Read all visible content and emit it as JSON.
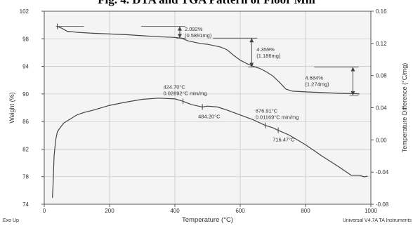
{
  "page_title": "Fig. 4. DTA and TGA Pattern of Floor Mill",
  "chart_data": {
    "type": "line",
    "x_axis": {
      "label": "Temperature (°C)",
      "range": [
        0,
        1000
      ],
      "ticks": [
        0,
        200,
        400,
        600,
        800,
        1000
      ],
      "tick_labels": [
        "0",
        "200",
        "400",
        "600",
        "800",
        "1000"
      ]
    },
    "y_left": {
      "label": "Weight (%)",
      "range": [
        74,
        102
      ],
      "ticks": [
        74,
        78,
        82,
        86,
        90,
        94,
        98,
        102
      ],
      "tick_labels": [
        "74",
        "78",
        "82",
        "86",
        "90",
        "94",
        "98",
        "102"
      ]
    },
    "y_right": {
      "label": "Temperature Difference (°C/mg)",
      "range": [
        -0.08,
        0.16
      ],
      "ticks": [
        -0.08,
        -0.04,
        0.0,
        0.04,
        0.08,
        0.12,
        0.16
      ],
      "tick_labels": [
        "-0.08",
        "-0.04",
        "0.00",
        "0.04",
        "0.08",
        "0.12",
        "0.16"
      ]
    },
    "grid": true,
    "legend": "none",
    "series": [
      {
        "axis": "left",
        "x": [
          40,
          55,
          70,
          100,
          150,
          200,
          250,
          300,
          350,
          400,
          420,
          440,
          460,
          480,
          500,
          520,
          540,
          560,
          580,
          600,
          620,
          640,
          660,
          680,
          700,
          720,
          740,
          760,
          780,
          800,
          850,
          900,
          950,
          965
        ],
        "y": [
          99.8,
          99.5,
          99.1,
          98.95,
          98.8,
          98.7,
          98.6,
          98.45,
          98.3,
          98.2,
          98.1,
          97.7,
          97.5,
          97.3,
          97.2,
          97.0,
          96.8,
          96.4,
          95.6,
          94.9,
          94.4,
          94.0,
          93.7,
          93.2,
          92.6,
          91.7,
          90.7,
          90.4,
          90.35,
          90.3,
          90.2,
          90.1,
          90.05,
          90.0
        ]
      },
      {
        "axis": "right",
        "x": [
          25,
          27,
          30,
          35,
          40,
          50,
          60,
          80,
          100,
          120,
          150,
          200,
          250,
          300,
          350,
          400,
          425,
          450,
          484,
          500,
          530,
          560,
          600,
          640,
          677,
          700,
          716,
          750,
          800,
          850,
          900,
          940,
          965,
          980,
          990
        ],
        "y": [
          -0.072,
          -0.055,
          -0.02,
          0.0,
          0.01,
          0.016,
          0.021,
          0.026,
          0.031,
          0.034,
          0.037,
          0.043,
          0.047,
          0.0505,
          0.052,
          0.051,
          0.048,
          0.044,
          0.041,
          0.042,
          0.041,
          0.037,
          0.031,
          0.025,
          0.018,
          0.015,
          0.012,
          0.006,
          -0.006,
          -0.02,
          -0.033,
          -0.044,
          -0.044,
          -0.046,
          -0.045
        ]
      }
    ],
    "weight_loss_annotations": [
      {
        "percent": "2.092%",
        "mass": "(0.5891mg)",
        "x": 415,
        "y_top": 99.8,
        "y_bottom": 98.1
      },
      {
        "percent": "4.359%",
        "mass": "(1.186mg)",
        "x": 635,
        "y_top": 98.1,
        "y_bottom": 93.9
      },
      {
        "percent": "4.684%",
        "mass": "(1.274mg)",
        "x": 945,
        "y_top": 93.9,
        "y_bottom": 89.8
      }
    ],
    "dta_annotations": [
      {
        "lines": [
          "424.70°C",
          "0.02892°C min/mg"
        ],
        "x": 424.7,
        "y": 0.048
      },
      {
        "lines": [
          "484.20°C"
        ],
        "x": 484.2,
        "y": 0.041
      },
      {
        "lines": [
          "676.91°C",
          "0.01169°C min/mg"
        ],
        "x": 676.91,
        "y": 0.018
      },
      {
        "lines": [
          "716.47°C"
        ],
        "x": 716.47,
        "y": 0.012
      }
    ],
    "corner_left": "Exo Up",
    "corner_right": "Universal V4.7A TA Instruments"
  }
}
